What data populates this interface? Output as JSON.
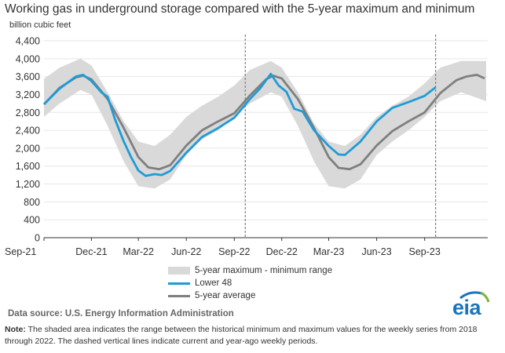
{
  "title": "Working gas in underground  storage compared with the 5-year maximum and minimum",
  "units_label": "billion cubic feet",
  "source": "Data source:  U.S. Energy Information Administration",
  "note_label": "Note:",
  "note_text": " The shaded area indicates the range between the historical minimum and maximum values for the weekly series from 2018 through 2022. The dashed vertical lines indicate current and year-ago weekly periods.",
  "logo_text": "eia",
  "colors": {
    "range": "#d9d9d9",
    "lower48": "#1f9bd7",
    "avg": "#7f7f7f",
    "dashed": "#7f7f7f",
    "axis": "#333333"
  },
  "legend": {
    "range": "5-year maximum - minimum range",
    "lower48": "Lower 48",
    "avg": "5-year average"
  },
  "chart_data": {
    "type": "area",
    "ylim": [
      0,
      4400
    ],
    "yticks": [
      0,
      400,
      800,
      1200,
      1600,
      2000,
      2400,
      2800,
      3200,
      3600,
      4000,
      4400
    ],
    "ytick_labels": [
      "0",
      "400",
      "800",
      "1,200",
      "1,600",
      "2,000",
      "2,400",
      "2,800",
      "3,200",
      "3,600",
      "4,000",
      "4,400"
    ],
    "xlim": [
      "2021-09-01",
      "2023-12-31"
    ],
    "xticks": [
      "2021-09-01",
      "2021-12-01",
      "2022-03-01",
      "2022-06-01",
      "2022-09-01",
      "2022-12-01",
      "2023-03-01",
      "2023-06-01",
      "2023-09-01"
    ],
    "xtick_labels": [
      "Sep-21",
      "Dec-21",
      "Mar-22",
      "Jun-22",
      "Sep-22",
      "Dec-22",
      "Mar-23",
      "Jun-23",
      "Sep-23"
    ],
    "dashed_lines": [
      "2022-09-22",
      "2023-09-22"
    ],
    "range_max": {
      "x": [
        "2021-09-01",
        "2021-10-01",
        "2021-11-10",
        "2021-12-01",
        "2022-01-01",
        "2022-02-01",
        "2022-03-01",
        "2022-04-01",
        "2022-05-01",
        "2022-06-01",
        "2022-07-01",
        "2022-08-01",
        "2022-09-01",
        "2022-10-01",
        "2022-11-10",
        "2022-12-01",
        "2023-01-01",
        "2023-02-01",
        "2023-03-01",
        "2023-04-01",
        "2023-05-01",
        "2023-06-01",
        "2023-07-01",
        "2023-08-01",
        "2023-09-01",
        "2023-10-01",
        "2023-11-10",
        "2023-12-28"
      ],
      "y": [
        3550,
        3800,
        4000,
        3850,
        3250,
        2600,
        2150,
        2050,
        2300,
        2700,
        2950,
        3150,
        3400,
        3750,
        3950,
        3800,
        3250,
        2550,
        2150,
        2050,
        2300,
        2700,
        2950,
        3150,
        3450,
        3800,
        3950,
        3950
      ]
    },
    "range_min": {
      "x": [
        "2021-09-01",
        "2021-10-01",
        "2021-11-10",
        "2021-12-01",
        "2022-01-01",
        "2022-02-01",
        "2022-03-01",
        "2022-04-01",
        "2022-05-01",
        "2022-06-01",
        "2022-07-01",
        "2022-08-01",
        "2022-09-01",
        "2022-10-01",
        "2022-11-10",
        "2022-12-01",
        "2023-01-01",
        "2023-02-01",
        "2023-03-01",
        "2023-04-01",
        "2023-05-01",
        "2023-06-01",
        "2023-07-01",
        "2023-08-01",
        "2023-09-01",
        "2023-10-01",
        "2023-11-10",
        "2023-12-28"
      ],
      "y": [
        2700,
        3000,
        3300,
        3200,
        2500,
        1700,
        1150,
        1100,
        1300,
        1850,
        2200,
        2400,
        2700,
        3000,
        3250,
        3150,
        2500,
        1700,
        1150,
        1100,
        1300,
        1850,
        2150,
        2400,
        2700,
        3050,
        3250,
        3050
      ]
    },
    "series": [
      {
        "name": "Lower 48",
        "x": [
          "2021-09-01",
          "2021-10-01",
          "2021-11-01",
          "2021-11-15",
          "2021-12-01",
          "2021-12-20",
          "2022-01-01",
          "2022-01-15",
          "2022-02-01",
          "2022-02-15",
          "2022-03-01",
          "2022-03-15",
          "2022-04-01",
          "2022-04-15",
          "2022-05-01",
          "2022-06-01",
          "2022-07-01",
          "2022-08-01",
          "2022-09-01",
          "2022-10-01",
          "2022-10-20",
          "2022-11-10",
          "2022-11-25",
          "2022-12-10",
          "2022-12-25",
          "2023-01-10",
          "2023-02-01",
          "2023-03-01",
          "2023-03-20",
          "2023-04-01",
          "2023-05-01",
          "2023-06-01",
          "2023-07-01",
          "2023-08-01",
          "2023-09-01",
          "2023-09-22"
        ],
        "y": [
          2980,
          3330,
          3600,
          3640,
          3500,
          3250,
          3150,
          2650,
          2150,
          1800,
          1500,
          1380,
          1420,
          1400,
          1490,
          1900,
          2250,
          2450,
          2680,
          3100,
          3330,
          3660,
          3400,
          3260,
          2880,
          2820,
          2400,
          2050,
          1860,
          1850,
          2150,
          2600,
          2900,
          3030,
          3170,
          3360
        ]
      },
      {
        "name": "5-year average",
        "x": [
          "2021-09-01",
          "2021-10-01",
          "2021-11-01",
          "2021-11-15",
          "2021-12-01",
          "2022-01-01",
          "2022-02-01",
          "2022-03-01",
          "2022-03-20",
          "2022-04-10",
          "2022-05-01",
          "2022-06-01",
          "2022-07-01",
          "2022-08-01",
          "2022-09-01",
          "2022-10-01",
          "2022-11-01",
          "2022-11-15",
          "2022-12-01",
          "2023-01-01",
          "2023-02-01",
          "2023-03-01",
          "2023-03-20",
          "2023-04-10",
          "2023-05-01",
          "2023-06-01",
          "2023-07-01",
          "2023-08-01",
          "2023-09-01",
          "2023-10-01",
          "2023-11-01",
          "2023-11-20",
          "2023-12-10",
          "2023-12-25"
        ],
        "y": [
          2980,
          3350,
          3580,
          3620,
          3540,
          3100,
          2450,
          1800,
          1570,
          1530,
          1620,
          2060,
          2400,
          2600,
          2780,
          3180,
          3540,
          3620,
          3560,
          3100,
          2450,
          1800,
          1560,
          1530,
          1640,
          2060,
          2380,
          2600,
          2800,
          3230,
          3520,
          3600,
          3640,
          3560
        ]
      }
    ]
  }
}
